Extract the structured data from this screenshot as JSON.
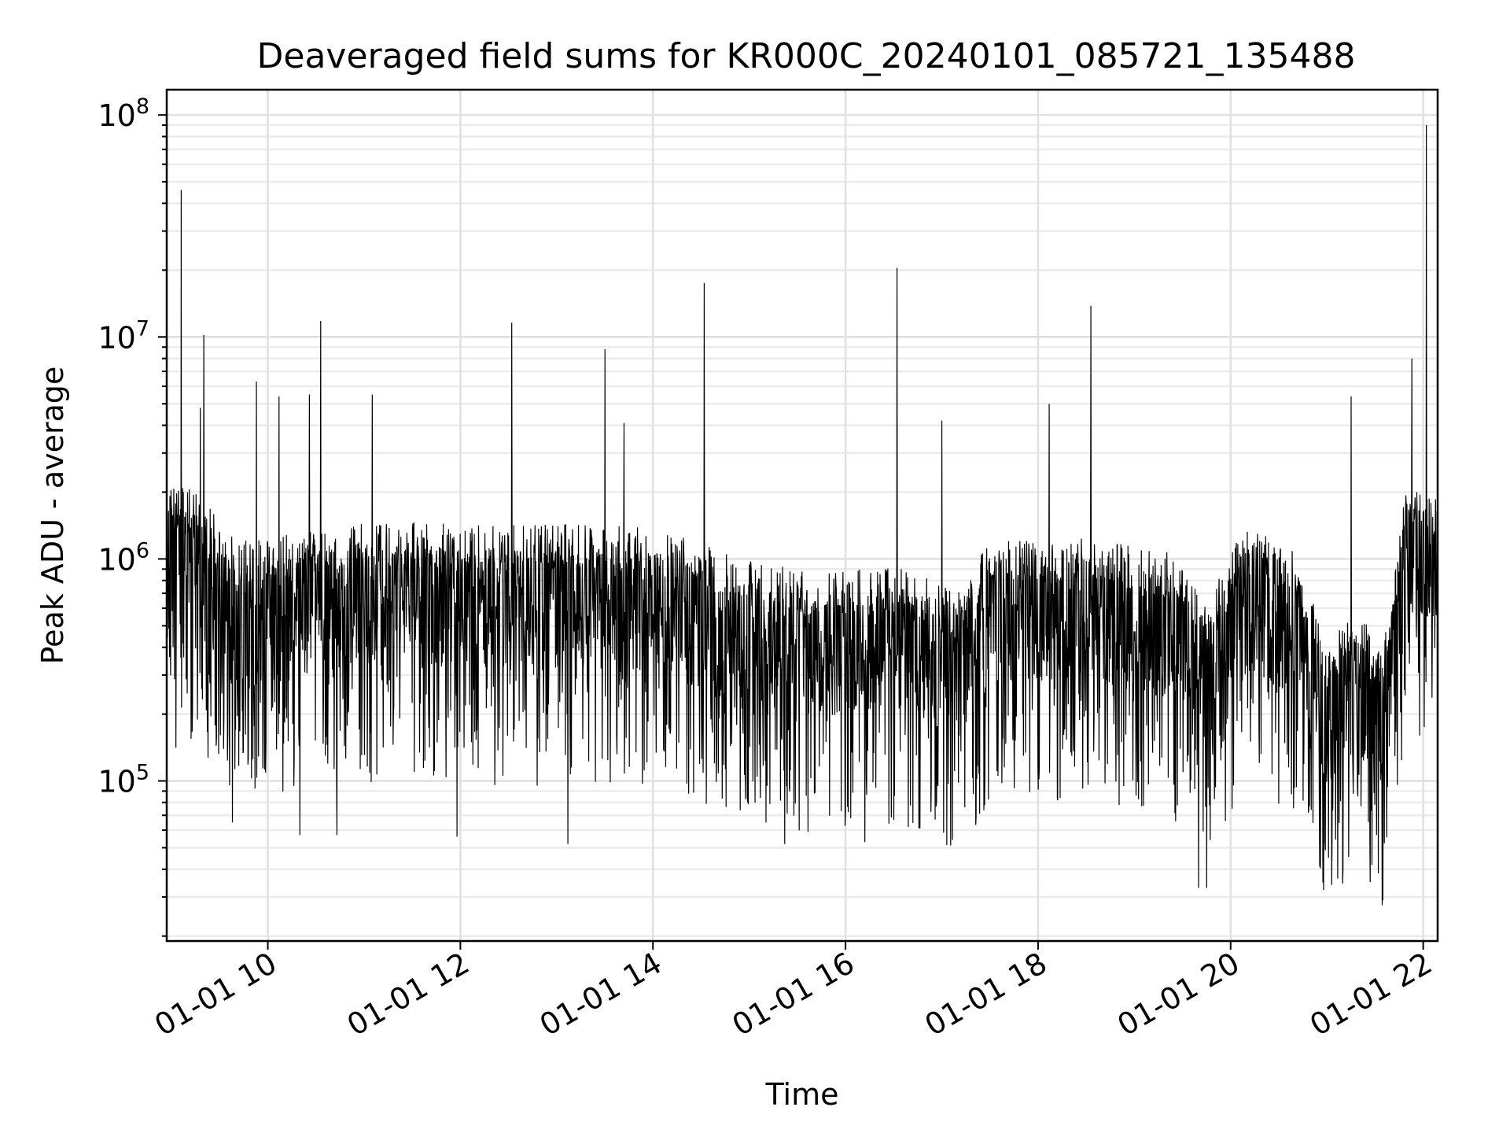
{
  "chart_data": {
    "type": "line",
    "title": "Deaveraged field sums for KR000C_20240101_085721_135488",
    "xlabel": "Time",
    "ylabel": "Peak ADU - average",
    "y_scale": "log",
    "grid": true,
    "line_color": "#000000",
    "xlim": [
      "2024-01-01 08:57",
      "2024-01-01 22:09"
    ],
    "ylim": [
      19000,
      130000000
    ],
    "x_ticks": [
      "2024-01-01 10:00",
      "2024-01-01 12:00",
      "2024-01-01 14:00",
      "2024-01-01 16:00",
      "2024-01-01 18:00",
      "2024-01-01 20:00",
      "2024-01-01 22:00"
    ],
    "x_tick_labels": [
      "01-01 10",
      "01-01 12",
      "01-01 14",
      "01-01 16",
      "01-01 18",
      "01-01 20",
      "01-01 22"
    ],
    "y_ticks": [
      100000,
      1000000,
      10000000,
      100000000
    ],
    "y_tick_labels": [
      {
        "base": "10",
        "exp": "5"
      },
      {
        "base": "10",
        "exp": "6"
      },
      {
        "base": "10",
        "exp": "7"
      },
      {
        "base": "10",
        "exp": "8"
      }
    ],
    "level_profile": [
      {
        "time": "2024-01-01 08:57",
        "typical": 900000
      },
      {
        "time": "2024-01-01 09:15",
        "typical": 850000
      },
      {
        "time": "2024-01-01 09:40",
        "typical": 500000
      },
      {
        "time": "2024-01-01 10:20",
        "typical": 550000
      },
      {
        "time": "2024-01-01 11:00",
        "typical": 620000
      },
      {
        "time": "2024-01-01 12:00",
        "typical": 600000
      },
      {
        "time": "2024-01-01 13:00",
        "typical": 600000
      },
      {
        "time": "2024-01-01 14:00",
        "typical": 580000
      },
      {
        "time": "2024-01-01 15:00",
        "typical": 420000
      },
      {
        "time": "2024-01-01 15:40",
        "typical": 360000
      },
      {
        "time": "2024-01-01 16:30",
        "typical": 400000
      },
      {
        "time": "2024-01-01 17:10",
        "typical": 300000
      },
      {
        "time": "2024-01-01 17:30",
        "typical": 500000
      },
      {
        "time": "2024-01-01 18:30",
        "typical": 520000
      },
      {
        "time": "2024-01-01 19:20",
        "typical": 450000
      },
      {
        "time": "2024-01-01 19:45",
        "typical": 280000
      },
      {
        "time": "2024-01-01 20:10",
        "typical": 600000
      },
      {
        "time": "2024-01-01 20:40",
        "typical": 450000
      },
      {
        "time": "2024-01-01 21:00",
        "typical": 180000
      },
      {
        "time": "2024-01-01 21:20",
        "typical": 250000
      },
      {
        "time": "2024-01-01 21:35",
        "typical": 160000
      },
      {
        "time": "2024-01-01 21:50",
        "typical": 1000000
      },
      {
        "time": "2024-01-01 22:09",
        "typical": 800000
      }
    ],
    "peaks": [
      {
        "time": "2024-01-01 09:06",
        "value": 46000000
      },
      {
        "time": "2024-01-01 09:20",
        "value": 10200000
      },
      {
        "time": "2024-01-01 09:18",
        "value": 4800000
      },
      {
        "time": "2024-01-01 09:53",
        "value": 6300000
      },
      {
        "time": "2024-01-01 10:07",
        "value": 5400000
      },
      {
        "time": "2024-01-01 10:26",
        "value": 5500000
      },
      {
        "time": "2024-01-01 10:33",
        "value": 11800000
      },
      {
        "time": "2024-01-01 11:05",
        "value": 5500000
      },
      {
        "time": "2024-01-01 12:32",
        "value": 11600000
      },
      {
        "time": "2024-01-01 13:30",
        "value": 8800000
      },
      {
        "time": "2024-01-01 13:42",
        "value": 4100000
      },
      {
        "time": "2024-01-01 14:32",
        "value": 17500000
      },
      {
        "time": "2024-01-01 16:32",
        "value": 20500000
      },
      {
        "time": "2024-01-01 17:00",
        "value": 4200000
      },
      {
        "time": "2024-01-01 18:07",
        "value": 5000000
      },
      {
        "time": "2024-01-01 18:33",
        "value": 13800000
      },
      {
        "time": "2024-01-01 21:15",
        "value": 5400000
      },
      {
        "time": "2024-01-01 21:53",
        "value": 8000000
      },
      {
        "time": "2024-01-01 22:02",
        "value": 90000000
      }
    ],
    "troughs": [
      {
        "time": "2024-01-01 09:38",
        "value": 65000
      },
      {
        "time": "2024-01-01 10:20",
        "value": 57000
      },
      {
        "time": "2024-01-01 10:43",
        "value": 57000
      },
      {
        "time": "2024-01-01 11:58",
        "value": 56000
      },
      {
        "time": "2024-01-01 13:07",
        "value": 52000
      },
      {
        "time": "2024-01-01 15:22",
        "value": 52000
      },
      {
        "time": "2024-01-01 16:12",
        "value": 53000
      },
      {
        "time": "2024-01-01 19:40",
        "value": 33000
      },
      {
        "time": "2024-01-01 19:45",
        "value": 33000
      },
      {
        "time": "2024-01-01 21:03",
        "value": 34000
      },
      {
        "time": "2024-01-01 21:27",
        "value": 35000
      },
      {
        "time": "2024-01-01 21:35",
        "value": 29000
      }
    ]
  }
}
